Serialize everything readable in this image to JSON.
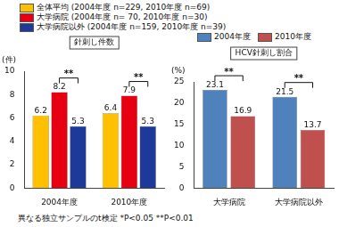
{
  "chart_data": [
    {
      "type": "bar",
      "title": "針刺し件数",
      "ylabel": "(件)",
      "categories": [
        "2004年度",
        "2010年度"
      ],
      "series": [
        {
          "name": "全体平均 (2004年度 n=229, 2010年度 n=69)",
          "color": "#ffc000",
          "values": [
            6.2,
            6.4
          ]
        },
        {
          "name": "大学病院 (2004年度 n= 70, 2010年度 n=30)",
          "color": "#e60012",
          "values": [
            8.2,
            7.9
          ]
        },
        {
          "name": "大学病院以外 (2004年度 n=159, 2010年度 n=39)",
          "color": "#1d3a9b",
          "values": [
            5.3,
            5.3
          ]
        }
      ],
      "ylim": [
        0,
        10
      ],
      "yticks": [
        0,
        2,
        4,
        6,
        8,
        10
      ],
      "grid": false,
      "legend": "top-left",
      "data_labels": true,
      "annotations": [
        {
          "text": "**",
          "category": "2004年度",
          "between": [
            "大学病院 (2004年度 n= 70, 2010年度 n=30)",
            "大学病院以外 (2004年度 n=159, 2010年度 n=39)"
          ]
        },
        {
          "text": "**",
          "category": "2010年度",
          "between": [
            "大学病院 (2004年度 n= 70, 2010年度 n=30)",
            "大学病院以外 (2004年度 n=159, 2010年度 n=39)"
          ]
        }
      ]
    },
    {
      "type": "bar",
      "title": "HCV針刺し割合",
      "ylabel": "(%)",
      "categories": [
        "大学病院",
        "大学病院以外"
      ],
      "series": [
        {
          "name": "2004年度",
          "color": "#4f81bd",
          "values": [
            23.1,
            21.5
          ]
        },
        {
          "name": "2010年度",
          "color": "#c0504d",
          "values": [
            16.9,
            13.7
          ]
        }
      ],
      "ylim": [
        0,
        25
      ],
      "yticks": [
        0,
        5,
        10,
        15,
        20,
        25
      ],
      "grid": false,
      "legend": "top",
      "data_labels": true,
      "annotations": [
        {
          "text": "**",
          "category": "大学病院",
          "between": [
            "2004年度",
            "2010年度"
          ]
        },
        {
          "text": "**",
          "category": "大学病院以外",
          "between": [
            "2004年度",
            "2010年度"
          ]
        }
      ]
    }
  ],
  "footnote": "異なる独立サンプルのt検定 *P<0.05 **P<0.01"
}
